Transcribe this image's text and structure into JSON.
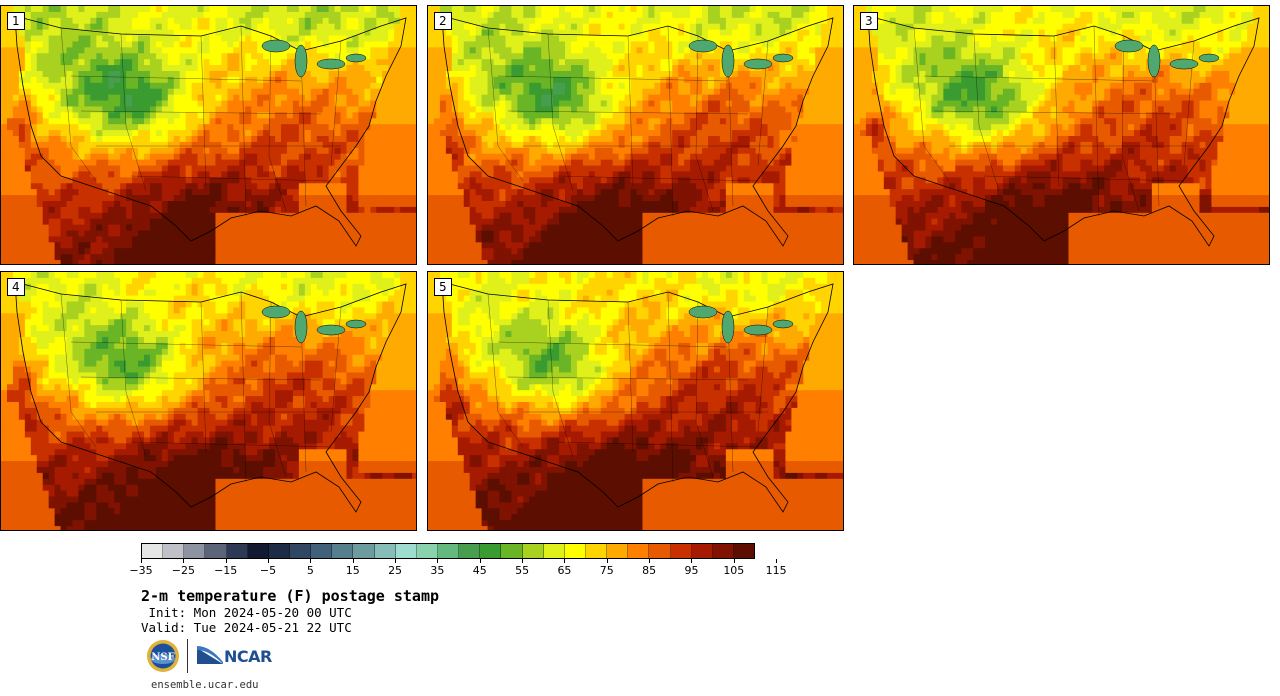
{
  "panels": [
    {
      "label": "1",
      "variant": 0
    },
    {
      "label": "2",
      "variant": 1
    },
    {
      "label": "3",
      "variant": 2
    },
    {
      "label": "4",
      "variant": 3
    },
    {
      "label": "5",
      "variant": 4
    }
  ],
  "colorbar": {
    "colors": [
      "#e6e6e6",
      "#c0c0c8",
      "#8d93a0",
      "#5b6478",
      "#2e3a55",
      "#111a30",
      "#1c2b46",
      "#2f4762",
      "#41617a",
      "#567f8d",
      "#6d9c9f",
      "#86bdb8",
      "#9edccf",
      "#89d2ad",
      "#64b97e",
      "#479e4e",
      "#3a9b30",
      "#69b526",
      "#a9d11f",
      "#dff01a",
      "#ffff00",
      "#ffd400",
      "#ffaa00",
      "#ff7f00",
      "#e85a00",
      "#c93000",
      "#a51a00",
      "#7f1200",
      "#5c0e00"
    ],
    "tick_labels": [
      "−35",
      "−25",
      "−15",
      "−5",
      "5",
      "15",
      "25",
      "35",
      "45",
      "55",
      "65",
      "75",
      "85",
      "95",
      "105",
      "115"
    ]
  },
  "title": "2-m temperature (F) postage stamp",
  "init": " Init: Mon 2024-05-20 00 UTC",
  "valid": "Valid: Tue 2024-05-21 22 UTC",
  "logos": {
    "nsf": "NSF",
    "ncar": "NCAR"
  },
  "site": "ensemble.ucar.edu"
}
